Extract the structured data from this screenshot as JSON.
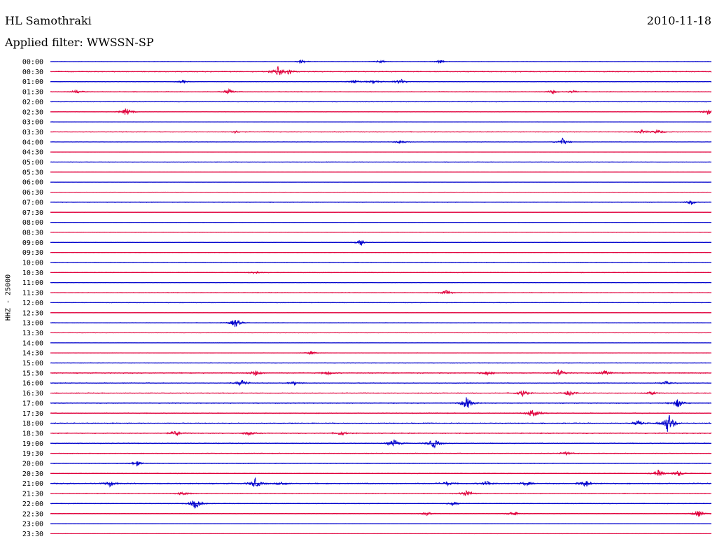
{
  "header": {
    "station": "HL Samothraki",
    "date": "2010-11-18",
    "filter": "Applied filter: WWSSN-SP"
  },
  "chart_data": {
    "type": "line",
    "subtype": "helicorder",
    "title": "HL Samothraki",
    "date": "2010-11-18",
    "filter": "WWSSN-SP",
    "ylabel": "HHZ - 25000",
    "colors": [
      "#0000cc",
      "#e0003c"
    ],
    "rows": [
      "00:00",
      "00:30",
      "01:00",
      "01:30",
      "02:00",
      "02:30",
      "03:00",
      "03:30",
      "04:00",
      "04:30",
      "05:00",
      "05:30",
      "06:00",
      "06:30",
      "07:00",
      "07:30",
      "08:00",
      "08:30",
      "09:00",
      "09:30",
      "10:00",
      "10:30",
      "11:00",
      "11:30",
      "12:00",
      "12:30",
      "13:00",
      "13:30",
      "14:00",
      "14:30",
      "15:00",
      "15:30",
      "16:00",
      "16:30",
      "17:00",
      "17:30",
      "18:00",
      "18:30",
      "19:00",
      "19:30",
      "20:00",
      "20:30",
      "21:00",
      "21:30",
      "22:00",
      "22:30",
      "23:00",
      "23:30"
    ],
    "noise": [
      0.25,
      0.55,
      0.3,
      0.35,
      0.3,
      0.3,
      0.2,
      0.35,
      0.3,
      0.12,
      0.3,
      0.12,
      0.12,
      0.12,
      0.35,
      0.15,
      0.12,
      0.2,
      0.2,
      0.25,
      0.3,
      0.35,
      0.25,
      0.35,
      0.3,
      0.15,
      0.3,
      0.2,
      0.15,
      0.25,
      0.3,
      0.55,
      0.45,
      0.45,
      0.45,
      0.45,
      0.55,
      0.55,
      0.45,
      0.4,
      0.35,
      0.35,
      0.6,
      0.4,
      0.35,
      0.3,
      0.15,
      0.12
    ],
    "events": [
      [
        0,
        0.38,
        2.5
      ],
      [
        0,
        0.5,
        2.5
      ],
      [
        0,
        0.59,
        2.2
      ],
      [
        1,
        0.345,
        8
      ],
      [
        1,
        0.36,
        4
      ],
      [
        2,
        0.2,
        2
      ],
      [
        2,
        0.46,
        3
      ],
      [
        2,
        0.49,
        3
      ],
      [
        2,
        0.53,
        4
      ],
      [
        3,
        0.04,
        3
      ],
      [
        3,
        0.27,
        3.5
      ],
      [
        3,
        0.76,
        2.5
      ],
      [
        3,
        0.79,
        2
      ],
      [
        5,
        0.115,
        6
      ],
      [
        5,
        0.995,
        4
      ],
      [
        7,
        0.28,
        2
      ],
      [
        7,
        0.895,
        3
      ],
      [
        7,
        0.92,
        3
      ],
      [
        8,
        0.53,
        3
      ],
      [
        8,
        0.775,
        5
      ],
      [
        14,
        0.97,
        3
      ],
      [
        18,
        0.47,
        5
      ],
      [
        21,
        0.31,
        2.5
      ],
      [
        23,
        0.6,
        4
      ],
      [
        26,
        0.28,
        7
      ],
      [
        29,
        0.395,
        3
      ],
      [
        31,
        0.31,
        4
      ],
      [
        31,
        0.42,
        2.5
      ],
      [
        31,
        0.66,
        3
      ],
      [
        31,
        0.77,
        5
      ],
      [
        31,
        0.84,
        3
      ],
      [
        32,
        0.29,
        5
      ],
      [
        32,
        0.37,
        2.5
      ],
      [
        32,
        0.93,
        3
      ],
      [
        33,
        0.715,
        5
      ],
      [
        33,
        0.785,
        4
      ],
      [
        33,
        0.91,
        2.5
      ],
      [
        34,
        0.63,
        10
      ],
      [
        34,
        0.95,
        7
      ],
      [
        35,
        0.73,
        8
      ],
      [
        36,
        0.89,
        4
      ],
      [
        36,
        0.935,
        16
      ],
      [
        37,
        0.19,
        4
      ],
      [
        37,
        0.3,
        2.5
      ],
      [
        37,
        0.44,
        3
      ],
      [
        38,
        0.52,
        6
      ],
      [
        38,
        0.58,
        7
      ],
      [
        39,
        0.78,
        3
      ],
      [
        40,
        0.13,
        4
      ],
      [
        41,
        0.92,
        5
      ],
      [
        41,
        0.95,
        4
      ],
      [
        42,
        0.09,
        4
      ],
      [
        42,
        0.31,
        7
      ],
      [
        42,
        0.35,
        3
      ],
      [
        42,
        0.6,
        3
      ],
      [
        42,
        0.66,
        4
      ],
      [
        42,
        0.72,
        3
      ],
      [
        42,
        0.81,
        5
      ],
      [
        43,
        0.2,
        3
      ],
      [
        43,
        0.63,
        6
      ],
      [
        44,
        0.22,
        8
      ],
      [
        44,
        0.61,
        3
      ],
      [
        45,
        0.57,
        3
      ],
      [
        45,
        0.7,
        4
      ],
      [
        45,
        0.98,
        5
      ]
    ]
  }
}
